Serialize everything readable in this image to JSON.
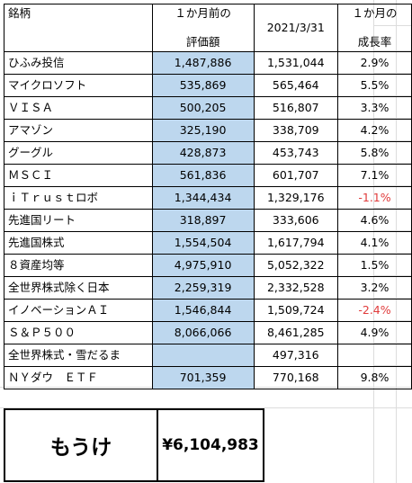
{
  "header": {
    "name": "銘柄",
    "prev_line1": "１か月前の",
    "prev_line2": "評価額",
    "date": "2021/3/31",
    "growth_line1": "１か月の",
    "growth_line2": "成長率"
  },
  "rows": [
    {
      "name": "ひふみ投信",
      "prev": "1,487,886",
      "current": "1,531,044",
      "growth": "2.9%",
      "negative": false
    },
    {
      "name": "マイクロソフト",
      "prev": "535,869",
      "current": "565,464",
      "growth": "5.5%",
      "negative": false
    },
    {
      "name": "ＶＩＳＡ",
      "prev": "500,205",
      "current": "516,807",
      "growth": "3.3%",
      "negative": false
    },
    {
      "name": "アマゾン",
      "prev": "325,190",
      "current": "338,709",
      "growth": "4.2%",
      "negative": false
    },
    {
      "name": "グーグル",
      "prev": "428,873",
      "current": "453,743",
      "growth": "5.8%",
      "negative": false
    },
    {
      "name": "ＭＳＣＩ",
      "prev": "561,836",
      "current": "601,707",
      "growth": "7.1%",
      "negative": false
    },
    {
      "name": "ｉＴｒｕｓｔロボ",
      "prev": "1,344,434",
      "current": "1,329,176",
      "growth": "-1.1%",
      "negative": true
    },
    {
      "name": "先進国リート",
      "prev": "318,897",
      "current": "333,606",
      "growth": "4.6%",
      "negative": false
    },
    {
      "name": "先進国株式",
      "prev": "1,554,504",
      "current": "1,617,794",
      "growth": "4.1%",
      "negative": false
    },
    {
      "name": "８資産均等",
      "prev": "4,975,910",
      "current": "5,052,322",
      "growth": "1.5%",
      "negative": false
    },
    {
      "name": "全世界株式除く日本",
      "prev": "2,259,319",
      "current": "2,332,528",
      "growth": "3.2%",
      "negative": false
    },
    {
      "name": "イノベーションＡＩ",
      "prev": "1,546,844",
      "current": "1,509,724",
      "growth": "-2.4%",
      "negative": true
    },
    {
      "name": "Ｓ＆Ｐ５００",
      "prev": "8,066,066",
      "current": "8,461,285",
      "growth": "4.9%",
      "negative": false
    },
    {
      "name": "全世界株式・雪だるま",
      "prev": "",
      "current": "497,316",
      "growth": "",
      "negative": false
    },
    {
      "name": "ＮＹダウ　ＥＴＦ",
      "prev": "701,359",
      "current": "770,168",
      "growth": "9.8%",
      "negative": false
    }
  ],
  "profit": {
    "label": "もうけ",
    "value": "¥6,104,983"
  },
  "colors": {
    "highlight": "#bdd7ee",
    "negative": "#e03b3b"
  }
}
